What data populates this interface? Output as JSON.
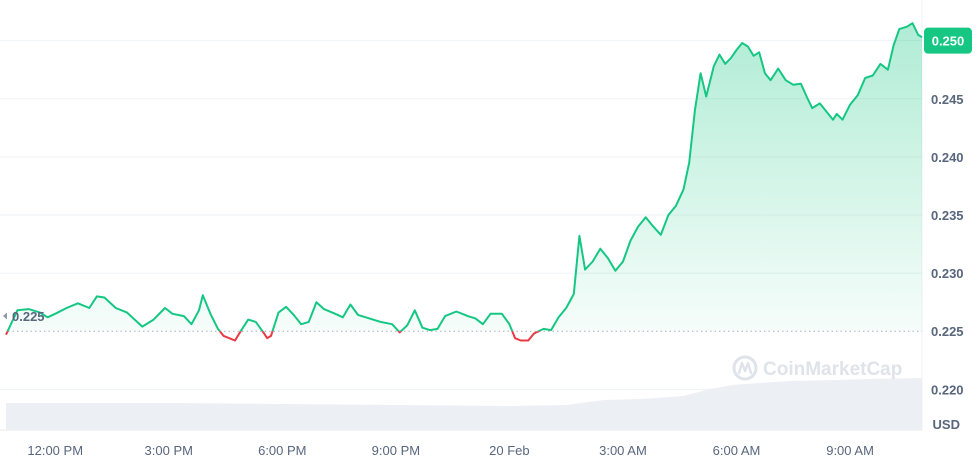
{
  "chart_data": {
    "type": "line",
    "unit_label": "USD",
    "reference_value": 0.225,
    "reference_label": "0.225",
    "current_value": 0.25,
    "current_label": "0.250",
    "watermark": "CoinMarketCap",
    "colors": {
      "up": "#16c784",
      "down": "#ea3943",
      "grid": "#eff2f5",
      "volume": "#eceff3",
      "badge": "#16c784"
    },
    "grid": true,
    "ylim": [
      0.2165,
      0.2535
    ],
    "y_ticks": [
      {
        "value": 0.22,
        "label": "0.220"
      },
      {
        "value": 0.225,
        "label": "0.225"
      },
      {
        "value": 0.23,
        "label": "0.230"
      },
      {
        "value": 0.235,
        "label": "0.235"
      },
      {
        "value": 0.24,
        "label": "0.240"
      },
      {
        "value": 0.245,
        "label": "0.245"
      },
      {
        "value": 0.25,
        "label": "0.250"
      }
    ],
    "x_ticks": [
      {
        "hour": 12,
        "label": "12:00 PM"
      },
      {
        "hour": 15,
        "label": "3:00 PM"
      },
      {
        "hour": 18,
        "label": "6:00 PM"
      },
      {
        "hour": 21,
        "label": "9:00 PM"
      },
      {
        "hour": 24,
        "label": "20 Feb"
      },
      {
        "hour": 27,
        "label": "3:00 AM"
      },
      {
        "hour": 30,
        "label": "6:00 AM"
      },
      {
        "hour": 33,
        "label": "9:00 AM"
      }
    ],
    "xlim": [
      10.7,
      34.9
    ],
    "series": [
      {
        "points": [
          [
            10.7,
            0.2247
          ],
          [
            11.0,
            0.2268
          ],
          [
            11.3,
            0.2269
          ],
          [
            11.6,
            0.2266
          ],
          [
            11.8,
            0.2262
          ],
          [
            12.0,
            0.2265
          ],
          [
            12.3,
            0.227
          ],
          [
            12.6,
            0.2274
          ],
          [
            12.9,
            0.227
          ],
          [
            13.1,
            0.228
          ],
          [
            13.3,
            0.2279
          ],
          [
            13.6,
            0.227
          ],
          [
            13.9,
            0.2266
          ],
          [
            14.1,
            0.226
          ],
          [
            14.3,
            0.2254
          ],
          [
            14.6,
            0.226
          ],
          [
            14.9,
            0.227
          ],
          [
            15.1,
            0.2265
          ],
          [
            15.4,
            0.2263
          ],
          [
            15.6,
            0.2256
          ],
          [
            15.8,
            0.2268
          ],
          [
            15.9,
            0.2281
          ],
          [
            16.1,
            0.2265
          ],
          [
            16.3,
            0.2252
          ],
          [
            16.45,
            0.2246
          ],
          [
            16.6,
            0.2244
          ],
          [
            16.75,
            0.2242
          ],
          [
            16.9,
            0.225
          ],
          [
            17.1,
            0.226
          ],
          [
            17.3,
            0.2258
          ],
          [
            17.5,
            0.2249
          ],
          [
            17.6,
            0.2244
          ],
          [
            17.7,
            0.2246
          ],
          [
            17.9,
            0.2266
          ],
          [
            18.1,
            0.2271
          ],
          [
            18.3,
            0.2264
          ],
          [
            18.5,
            0.2256
          ],
          [
            18.7,
            0.2258
          ],
          [
            18.9,
            0.2275
          ],
          [
            19.1,
            0.2269
          ],
          [
            19.4,
            0.2265
          ],
          [
            19.6,
            0.2262
          ],
          [
            19.8,
            0.2273
          ],
          [
            20.0,
            0.2264
          ],
          [
            20.3,
            0.2261
          ],
          [
            20.6,
            0.2258
          ],
          [
            20.9,
            0.2256
          ],
          [
            21.1,
            0.2249
          ],
          [
            21.3,
            0.2255
          ],
          [
            21.5,
            0.2268
          ],
          [
            21.7,
            0.2253
          ],
          [
            21.9,
            0.2251
          ],
          [
            22.1,
            0.2252
          ],
          [
            22.3,
            0.2263
          ],
          [
            22.6,
            0.2267
          ],
          [
            22.9,
            0.2263
          ],
          [
            23.1,
            0.2261
          ],
          [
            23.3,
            0.2256
          ],
          [
            23.5,
            0.2265
          ],
          [
            23.8,
            0.2265
          ],
          [
            24.0,
            0.2256
          ],
          [
            24.15,
            0.2244
          ],
          [
            24.3,
            0.2242
          ],
          [
            24.5,
            0.2242
          ],
          [
            24.65,
            0.2248
          ],
          [
            24.9,
            0.2252
          ],
          [
            25.1,
            0.2251
          ],
          [
            25.3,
            0.2262
          ],
          [
            25.5,
            0.227
          ],
          [
            25.7,
            0.2282
          ],
          [
            25.85,
            0.2332
          ],
          [
            26.0,
            0.2303
          ],
          [
            26.2,
            0.231
          ],
          [
            26.4,
            0.2321
          ],
          [
            26.6,
            0.2313
          ],
          [
            26.8,
            0.2302
          ],
          [
            27.0,
            0.231
          ],
          [
            27.2,
            0.2328
          ],
          [
            27.4,
            0.234
          ],
          [
            27.6,
            0.2348
          ],
          [
            27.8,
            0.234
          ],
          [
            28.0,
            0.2333
          ],
          [
            28.2,
            0.235
          ],
          [
            28.4,
            0.2358
          ],
          [
            28.6,
            0.2372
          ],
          [
            28.75,
            0.2395
          ],
          [
            28.9,
            0.244
          ],
          [
            29.05,
            0.2472
          ],
          [
            29.2,
            0.2452
          ],
          [
            29.4,
            0.2478
          ],
          [
            29.55,
            0.2488
          ],
          [
            29.7,
            0.248
          ],
          [
            29.85,
            0.2485
          ],
          [
            30.0,
            0.2492
          ],
          [
            30.15,
            0.2498
          ],
          [
            30.3,
            0.2495
          ],
          [
            30.45,
            0.2487
          ],
          [
            30.6,
            0.249
          ],
          [
            30.75,
            0.2472
          ],
          [
            30.9,
            0.2466
          ],
          [
            31.1,
            0.2476
          ],
          [
            31.3,
            0.2466
          ],
          [
            31.5,
            0.2462
          ],
          [
            31.7,
            0.2463
          ],
          [
            31.85,
            0.2452
          ],
          [
            32.0,
            0.2442
          ],
          [
            32.2,
            0.2446
          ],
          [
            32.4,
            0.2438
          ],
          [
            32.55,
            0.2432
          ],
          [
            32.65,
            0.2437
          ],
          [
            32.8,
            0.2432
          ],
          [
            33.0,
            0.2445
          ],
          [
            33.2,
            0.2453
          ],
          [
            33.4,
            0.2468
          ],
          [
            33.6,
            0.247
          ],
          [
            33.8,
            0.248
          ],
          [
            34.0,
            0.2475
          ],
          [
            34.15,
            0.2496
          ],
          [
            34.3,
            0.251
          ],
          [
            34.5,
            0.2512
          ],
          [
            34.65,
            0.2515
          ],
          [
            34.8,
            0.2505
          ],
          [
            34.9,
            0.2503
          ]
        ]
      }
    ],
    "volume_relative": [
      [
        10.7,
        0.27
      ],
      [
        15.0,
        0.27
      ],
      [
        18.0,
        0.26
      ],
      [
        21.0,
        0.25
      ],
      [
        24.0,
        0.24
      ],
      [
        25.5,
        0.25
      ],
      [
        26.1,
        0.28
      ],
      [
        26.5,
        0.3
      ],
      [
        27.5,
        0.31
      ],
      [
        28.6,
        0.34
      ],
      [
        29.3,
        0.41
      ],
      [
        29.9,
        0.45
      ],
      [
        30.6,
        0.47
      ],
      [
        31.4,
        0.49
      ],
      [
        32.6,
        0.5
      ],
      [
        33.5,
        0.51
      ],
      [
        34.9,
        0.52
      ]
    ]
  }
}
